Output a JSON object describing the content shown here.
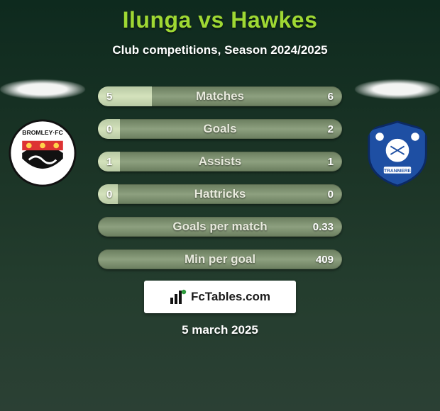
{
  "title": {
    "text": "Ilunga vs Hawkes",
    "fontsize": 32,
    "color": "#9fd833"
  },
  "subtitle": {
    "text": "Club competitions, Season 2024/2025",
    "fontsize": 17,
    "color": "#ffffff"
  },
  "date": {
    "text": "5 march 2025",
    "fontsize": 17,
    "color": "#ffffff"
  },
  "badge": {
    "text": "FcTables.com",
    "fontsize": 17
  },
  "crests": {
    "left": {
      "name": "bromley-fc-crest"
    },
    "right": {
      "name": "tranmere-rovers-crest"
    }
  },
  "bar_style": {
    "height": 28,
    "gap": 18,
    "radius": 14,
    "track_gradient": [
      "#6a7d5e",
      "#8da07f",
      "#6a7d5e"
    ],
    "fill_gradient": [
      "#b8c9a4",
      "#d4e2bc",
      "#b8c9a4"
    ],
    "value_fontsize": 15,
    "metric_fontsize": 17,
    "value_color": "#ffffff",
    "metric_color": "#e8eadd"
  },
  "metrics": [
    {
      "label": "Matches",
      "left_val": "5",
      "right_val": "6",
      "left_pct": 0.22,
      "right_pct": 0.0
    },
    {
      "label": "Goals",
      "left_val": "0",
      "right_val": "2",
      "left_pct": 0.09,
      "right_pct": 0.0
    },
    {
      "label": "Assists",
      "left_val": "1",
      "right_val": "1",
      "left_pct": 0.09,
      "right_pct": 0.0
    },
    {
      "label": "Hattricks",
      "left_val": "0",
      "right_val": "0",
      "left_pct": 0.08,
      "right_pct": 0.0
    },
    {
      "label": "Goals per match",
      "left_val": "",
      "right_val": "0.33",
      "left_pct": 0.0,
      "right_pct": 0.0
    },
    {
      "label": "Min per goal",
      "left_val": "",
      "right_val": "409",
      "left_pct": 0.0,
      "right_pct": 0.0
    }
  ]
}
